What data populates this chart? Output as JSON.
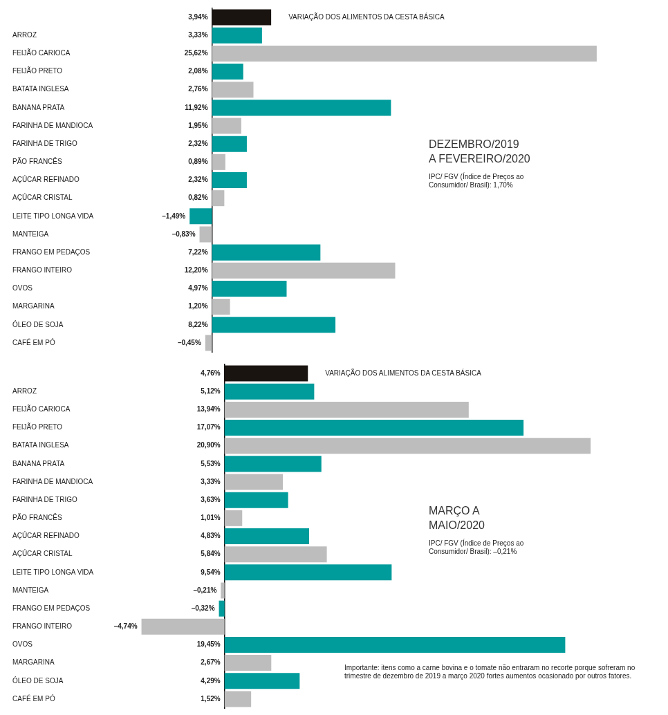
{
  "chart_data": [
    {
      "type": "bar",
      "orientation": "horizontal",
      "title": "DEZEMBRO/2019\nA FEVEREIRO/2020",
      "annotations": [
        "IPC/ FGV (Índice de Preços ao Consumidor/ Brasil): 1,70%"
      ],
      "categories": [
        "VARIAÇÃO DOS ALIMENTOS DA CESTA BÁSICA",
        "ARROZ",
        "FEIJÃO CARIOCA",
        "FEIJÃO PRETO",
        "BATATA INGLESA",
        "BANANA PRATA",
        "FARINHA DE MANDIOCA",
        "FARINHA DE TRIGO",
        "PÃO FRANCÊS",
        "AÇÚCAR REFINADO",
        "AÇÚCAR CRISTAL",
        "LEITE TIPO LONGA VIDA",
        "MANTEIGA",
        "FRANGO EM PEDAÇOS",
        "FRANGO INTEIRO",
        "OVOS",
        "MARGARINA",
        "ÓLEO DE SOJA",
        "CAFÉ EM PÓ"
      ],
      "values": [
        3.94,
        3.33,
        25.62,
        2.08,
        2.76,
        11.92,
        1.95,
        2.32,
        0.89,
        2.32,
        0.82,
        -1.49,
        -0.83,
        7.22,
        12.2,
        4.97,
        1.2,
        8.22,
        -0.45
      ],
      "value_labels": [
        "3,94%",
        "3,33%",
        "25,62%",
        "2,08%",
        "2,76%",
        "11,92%",
        "1,95%",
        "2,32%",
        "0,89%",
        "2,32%",
        "0,82%",
        "–1,49%",
        "–0,83%",
        "7,22%",
        "12,20%",
        "4,97%",
        "1,20%",
        "8,22%",
        "–0,45%"
      ],
      "colors": [
        "#1a1410",
        "#009b9b",
        "#bdbdbd",
        "#009b9b",
        "#bdbdbd",
        "#009b9b",
        "#bdbdbd",
        "#009b9b",
        "#bdbdbd",
        "#009b9b",
        "#bdbdbd",
        "#009b9b",
        "#bdbdbd",
        "#009b9b",
        "#bdbdbd",
        "#009b9b",
        "#bdbdbd",
        "#009b9b",
        "#bdbdbd"
      ],
      "grid": false,
      "legend": false
    },
    {
      "type": "bar",
      "orientation": "horizontal",
      "title": "MARÇO A\nMAIO/2020",
      "annotations": [
        "IPC/ FGV (Índice de Preços ao Consumidor/ Brasil): –0,21%",
        "Importante: itens como a carne bovina e o tomate não entraram no recorte porque sofreram no trimestre de dezembro de 2019 a março 2020 fortes aumentos ocasionado por outros fatores."
      ],
      "categories": [
        "VARIAÇÃO DOS ALIMENTOS DA CESTA BÁSICA",
        "ARROZ",
        "FEIJÃO CARIOCA",
        "FEIJÃO PRETO",
        "BATATA INGLESA",
        "BANANA PRATA",
        "FARINHA DE MANDIOCA",
        "FARINHA DE TRIGO",
        "PÃO FRANCÊS",
        "AÇÚCAR REFINADO",
        "AÇÚCAR CRISTAL",
        "LEITE TIPO LONGA VIDA",
        "MANTEIGA",
        "FRANGO EM PEDAÇOS",
        "FRANGO INTEIRO",
        "OVOS",
        "MARGARINA",
        "ÓLEO DE SOJA",
        "CAFÉ EM PÓ"
      ],
      "values": [
        4.76,
        5.12,
        13.94,
        17.07,
        20.9,
        5.53,
        3.33,
        3.63,
        1.01,
        4.83,
        5.84,
        9.54,
        -0.21,
        -0.32,
        -4.74,
        19.45,
        2.67,
        4.29,
        1.52
      ],
      "value_labels": [
        "4,76%",
        "5,12%",
        "13,94%",
        "17,07%",
        "20,90%",
        "5,53%",
        "3,33%",
        "3,63%",
        "1,01%",
        "4,83%",
        "5,84%",
        "9,54%",
        "–0,21%",
        "–0,32%",
        "–4,74%",
        "19,45%",
        "2,67%",
        "4,29%",
        "1,52%"
      ],
      "colors": [
        "#1a1410",
        "#009b9b",
        "#bdbdbd",
        "#009b9b",
        "#bdbdbd",
        "#009b9b",
        "#bdbdbd",
        "#009b9b",
        "#bdbdbd",
        "#009b9b",
        "#bdbdbd",
        "#009b9b",
        "#bdbdbd",
        "#009b9b",
        "#bdbdbd",
        "#009b9b",
        "#bdbdbd",
        "#009b9b",
        "#bdbdbd"
      ],
      "grid": false,
      "legend": false
    }
  ]
}
